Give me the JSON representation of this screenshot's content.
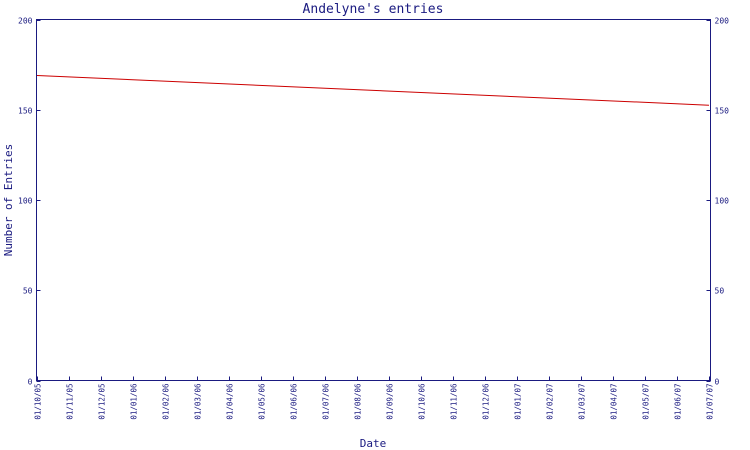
{
  "chart_data": {
    "type": "line",
    "title": "Andelyne's entries",
    "xlabel": "Date",
    "ylabel": "Number of Entries",
    "ylim": [
      0,
      200
    ],
    "y_ticks": [
      "0",
      "50",
      "100",
      "150",
      "200"
    ],
    "categories": [
      "01/10/05",
      "01/11/05",
      "01/12/05",
      "01/01/06",
      "01/02/06",
      "01/03/06",
      "01/04/06",
      "01/05/06",
      "01/06/06",
      "01/07/06",
      "01/08/06",
      "01/09/06",
      "01/10/06",
      "01/11/06",
      "01/12/06",
      "01/01/07",
      "01/02/07",
      "01/03/07",
      "01/04/07",
      "01/05/07",
      "01/06/07",
      "01/07/07"
    ],
    "series": [
      {
        "color": "#cc0000",
        "x": [
          "01/10/05",
          "01/07/07"
        ],
        "values": [
          169,
          152.5
        ]
      }
    ],
    "grid": false,
    "right_axis": true
  }
}
